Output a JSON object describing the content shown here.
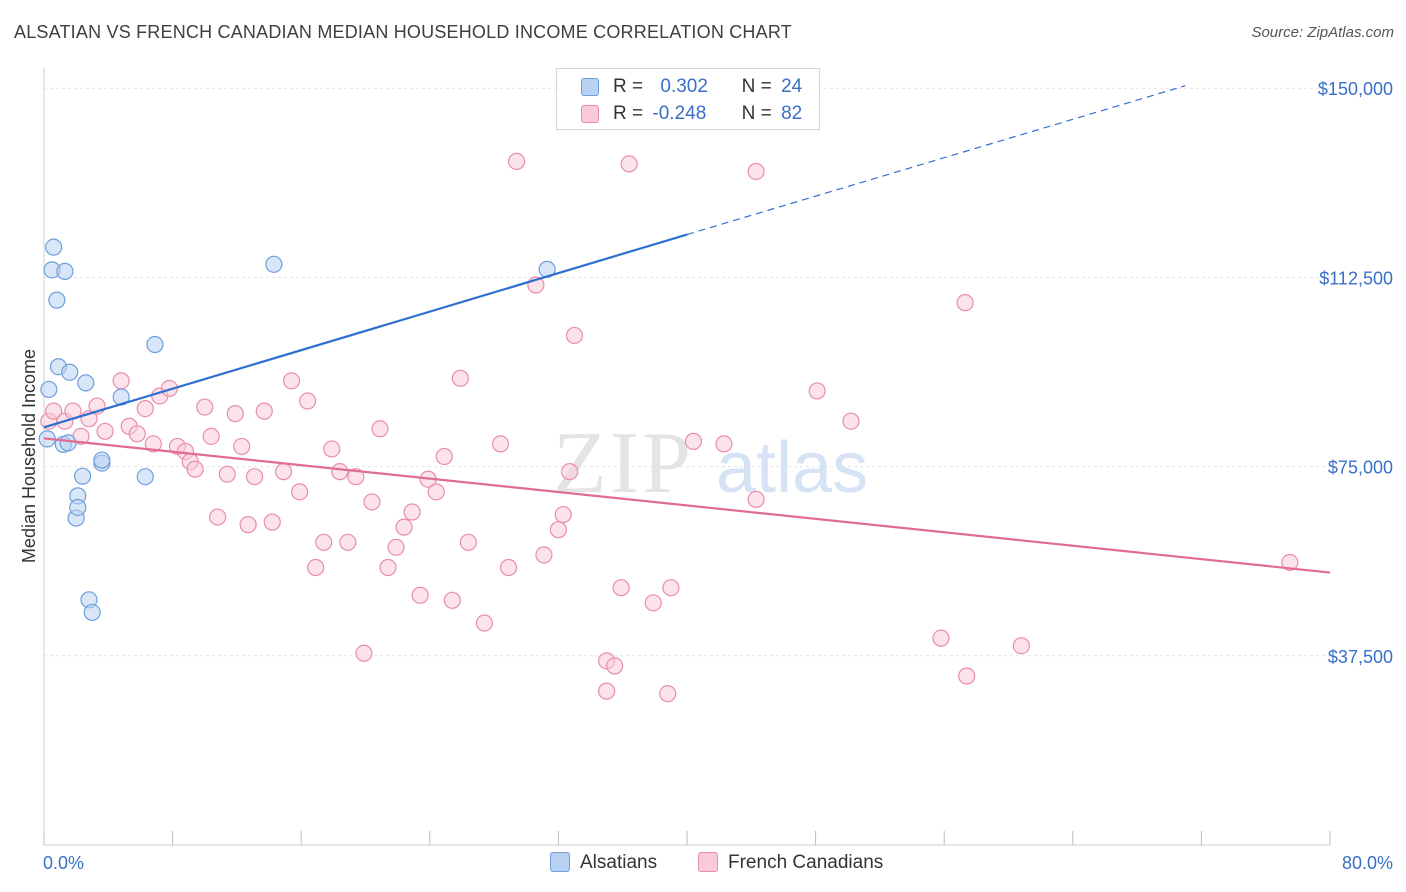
{
  "header": {
    "title": "ALSATIAN VS FRENCH CANADIAN MEDIAN HOUSEHOLD INCOME CORRELATION CHART",
    "source": "Source: ZipAtlas.com"
  },
  "watermark": {
    "zip": "ZIP",
    "atlas": "atlas"
  },
  "legend": {
    "rows": [
      {
        "r_label": "R =",
        "r_value": "0.302",
        "n_label": "N =",
        "n_value": "24",
        "color": "#a9c6ee"
      },
      {
        "r_label": "R =",
        "r_value": "-0.248",
        "n_label": "N =",
        "n_value": "82",
        "color": "#f5b8cb"
      }
    ]
  },
  "bottom_legend": [
    "Alsatians",
    "French Canadians"
  ],
  "colors": {
    "blue_fill": "#b9d2f3",
    "blue_stroke": "#6f9fdc",
    "blue_line": "#2f6fcf",
    "pink_fill": "#f9cbd8",
    "pink_stroke": "#e88ea9",
    "pink_line": "#e06c94",
    "axis_text": "#3a6fc7",
    "grid": "#e3e3e3"
  },
  "chart_data": {
    "type": "scatter",
    "title": "ALSATIAN VS FRENCH CANADIAN MEDIAN HOUSEHOLD INCOME CORRELATION CHART",
    "xlabel": "",
    "ylabel": "Median Household Income",
    "xlim": [
      0,
      80
    ],
    "ylim": [
      0,
      155000
    ],
    "x_tick_labels": [
      "0.0%",
      "80.0%"
    ],
    "y_ticks": [
      37500,
      75000,
      112500,
      150000
    ],
    "y_tick_labels": [
      "$37,500",
      "$75,000",
      "$112,500",
      "$150,000"
    ],
    "grid": true,
    "legend_position": "top-center",
    "series": [
      {
        "name": "Alsatians",
        "r": 0.302,
        "n": 24,
        "points": [
          [
            0.2,
            80500
          ],
          [
            0.3,
            90300
          ],
          [
            0.6,
            118500
          ],
          [
            0.5,
            114000
          ],
          [
            0.8,
            108000
          ],
          [
            1.3,
            113700
          ],
          [
            0.9,
            94800
          ],
          [
            1.6,
            93700
          ],
          [
            2.6,
            91600
          ],
          [
            1.2,
            79400
          ],
          [
            1.5,
            79700
          ],
          [
            2.4,
            73100
          ],
          [
            2.1,
            69200
          ],
          [
            2.0,
            64800
          ],
          [
            2.1,
            66900
          ],
          [
            3.6,
            75700
          ],
          [
            3.6,
            76300
          ],
          [
            4.8,
            88800
          ],
          [
            6.3,
            73000
          ],
          [
            6.9,
            99200
          ],
          [
            2.8,
            48600
          ],
          [
            3.0,
            46100
          ],
          [
            14.3,
            115100
          ],
          [
            31.3,
            114100
          ]
        ],
        "trend": {
          "x": [
            0,
            40
          ],
          "y": [
            82800,
            121000
          ]
        },
        "trend_extension": {
          "x": [
            40,
            71
          ],
          "y": [
            121000,
            150500
          ]
        }
      },
      {
        "name": "French Canadians",
        "r": -0.248,
        "n": 82,
        "points": [
          [
            0.3,
            84000
          ],
          [
            0.6,
            86000
          ],
          [
            1.3,
            84000
          ],
          [
            1.8,
            86000
          ],
          [
            2.3,
            81000
          ],
          [
            2.8,
            84500
          ],
          [
            3.3,
            87000
          ],
          [
            3.8,
            82000
          ],
          [
            4.8,
            92000
          ],
          [
            5.3,
            83000
          ],
          [
            5.8,
            81500
          ],
          [
            6.3,
            86500
          ],
          [
            6.8,
            79500
          ],
          [
            7.2,
            89000
          ],
          [
            7.8,
            90500
          ],
          [
            8.3,
            79000
          ],
          [
            8.8,
            78000
          ],
          [
            9.1,
            76000
          ],
          [
            9.4,
            74500
          ],
          [
            10.0,
            86800
          ],
          [
            10.4,
            81000
          ],
          [
            10.8,
            65000
          ],
          [
            11.4,
            73500
          ],
          [
            11.9,
            85500
          ],
          [
            12.3,
            79000
          ],
          [
            12.7,
            63500
          ],
          [
            13.1,
            73000
          ],
          [
            13.7,
            86000
          ],
          [
            14.2,
            64000
          ],
          [
            14.9,
            74000
          ],
          [
            15.4,
            92000
          ],
          [
            15.9,
            70000
          ],
          [
            16.4,
            88000
          ],
          [
            16.9,
            55000
          ],
          [
            17.4,
            60000
          ],
          [
            17.9,
            78500
          ],
          [
            18.4,
            74000
          ],
          [
            18.9,
            60000
          ],
          [
            19.4,
            73000
          ],
          [
            19.9,
            38000
          ],
          [
            20.4,
            68000
          ],
          [
            20.9,
            82500
          ],
          [
            21.4,
            55000
          ],
          [
            21.9,
            59000
          ],
          [
            22.4,
            63000
          ],
          [
            22.9,
            66000
          ],
          [
            23.4,
            49500
          ],
          [
            23.9,
            72500
          ],
          [
            24.4,
            70000
          ],
          [
            24.9,
            77000
          ],
          [
            25.4,
            48500
          ],
          [
            25.9,
            92500
          ],
          [
            26.4,
            60000
          ],
          [
            27.4,
            44000
          ],
          [
            28.4,
            79500
          ],
          [
            28.9,
            55000
          ],
          [
            29.4,
            135500
          ],
          [
            30.6,
            111000
          ],
          [
            31.1,
            57500
          ],
          [
            32.0,
            62500
          ],
          [
            32.3,
            65500
          ],
          [
            32.7,
            74000
          ],
          [
            33.0,
            101000
          ],
          [
            35.0,
            36500
          ],
          [
            35.5,
            35500
          ],
          [
            35.9,
            51000
          ],
          [
            35.0,
            30500
          ],
          [
            36.4,
            135000
          ],
          [
            37.9,
            48000
          ],
          [
            39.0,
            51000
          ],
          [
            38.8,
            30000
          ],
          [
            40.4,
            80000
          ],
          [
            42.3,
            79500
          ],
          [
            44.3,
            133500
          ],
          [
            44.3,
            68500
          ],
          [
            48.1,
            90000
          ],
          [
            50.2,
            84000
          ],
          [
            55.8,
            41000
          ],
          [
            57.3,
            107500
          ],
          [
            57.4,
            33500
          ],
          [
            60.8,
            39500
          ],
          [
            77.5,
            56000
          ]
        ],
        "trend": {
          "x": [
            0,
            80
          ],
          "y": [
            80600,
            54000
          ]
        }
      }
    ]
  }
}
